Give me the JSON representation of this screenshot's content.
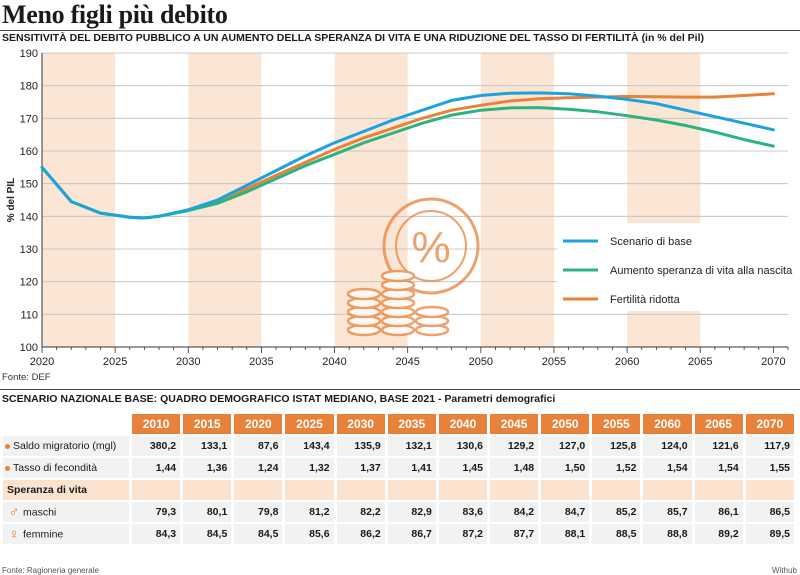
{
  "title": "Meno figli più debito",
  "subtitle": "SENSITIVITÀ DEL DEBITO PUBBLICO A UN AUMENTO DELLA SPERANZA DI VITA E UNA RIDUZIONE DEL TASSO DI FERTILITÀ",
  "subtitle_unit": "(in % del Pil)",
  "source": "Fonte: DEF",
  "chart_data": {
    "type": "line",
    "xlim": [
      2020,
      2071
    ],
    "ylim": [
      100,
      190
    ],
    "xticks": [
      2020,
      2025,
      2030,
      2035,
      2040,
      2045,
      2050,
      2055,
      2060,
      2065,
      2070
    ],
    "yticks": [
      100,
      110,
      120,
      130,
      140,
      150,
      160,
      170,
      180,
      190
    ],
    "xlabel": "",
    "ylabel": "% del PIL",
    "grid": true,
    "shaded_bands": [
      [
        2020,
        2025
      ],
      [
        2030,
        2035
      ],
      [
        2040,
        2045
      ],
      [
        2050,
        2055
      ],
      [
        2060,
        2065
      ]
    ],
    "legend_position": "right",
    "series": [
      {
        "name": "Scenario di base",
        "color": "#1ba3dc",
        "x": [
          2020,
          2022,
          2024,
          2026,
          2027,
          2028,
          2030,
          2032,
          2034,
          2036,
          2038,
          2040,
          2042,
          2044,
          2046,
          2048,
          2050,
          2052,
          2054,
          2056,
          2058,
          2060,
          2062,
          2064,
          2066,
          2068,
          2070
        ],
        "y": [
          155,
          144.5,
          141,
          139.7,
          139.5,
          140,
          142,
          145,
          149.5,
          154,
          158.5,
          162.5,
          166,
          169.5,
          172.5,
          175.5,
          177,
          177.7,
          177.8,
          177.5,
          176.8,
          175.8,
          174.5,
          172.5,
          170.5,
          168.5,
          166.5
        ]
      },
      {
        "name": "Aumento speranza di vita alla nascita",
        "color": "#2db37e",
        "x": [
          2020,
          2022,
          2024,
          2026,
          2027,
          2028,
          2030,
          2032,
          2034,
          2036,
          2038,
          2040,
          2042,
          2044,
          2046,
          2048,
          2050,
          2052,
          2054,
          2056,
          2058,
          2060,
          2062,
          2064,
          2066,
          2068,
          2070
        ],
        "y": [
          155,
          144.5,
          141,
          139.7,
          139.5,
          140,
          141.8,
          144,
          147.5,
          151.5,
          155.5,
          159,
          162.5,
          165.5,
          168.5,
          171,
          172.5,
          173.2,
          173.3,
          172.8,
          172,
          170.8,
          169.5,
          167.8,
          165.8,
          163.5,
          161.5
        ]
      },
      {
        "name": "Fertilità ridotta",
        "color": "#e8823b",
        "x": [
          2020,
          2022,
          2024,
          2026,
          2027,
          2028,
          2030,
          2032,
          2034,
          2036,
          2038,
          2040,
          2042,
          2044,
          2046,
          2048,
          2050,
          2052,
          2054,
          2056,
          2058,
          2060,
          2062,
          2064,
          2066,
          2068,
          2070
        ],
        "y": [
          155,
          144.5,
          141,
          139.7,
          139.5,
          140,
          142,
          144.5,
          148.5,
          152.5,
          156.5,
          160.5,
          164,
          167,
          170,
          172.5,
          174,
          175.3,
          176,
          176.3,
          176.5,
          176.7,
          176.6,
          176.5,
          176.5,
          177,
          177.5
        ]
      }
    ]
  },
  "table": {
    "title": "SCENARIO NAZIONALE BASE: QUADRO DEMOGRAFICO ISTAT MEDIANO, BASE 2021 - Parametri demografici",
    "years": [
      "2010",
      "2015",
      "2020",
      "2025",
      "2030",
      "2035",
      "2040",
      "2045",
      "2050",
      "2055",
      "2060",
      "2065",
      "2070"
    ],
    "rows": [
      {
        "label": "Saldo migratorio (mgl)",
        "values": [
          "380,2",
          "133,1",
          "87,6",
          "143,4",
          "135,9",
          "132,1",
          "130,6",
          "129,2",
          "127,0",
          "125,8",
          "124,0",
          "121,6",
          "117,9"
        ]
      },
      {
        "label": "Tasso di fecondità",
        "values": [
          "1,44",
          "1,36",
          "1,24",
          "1,32",
          "1,37",
          "1,41",
          "1,45",
          "1,48",
          "1,50",
          "1,52",
          "1,54",
          "1,54",
          "1,55"
        ]
      }
    ],
    "section_label": "Speranza di vita",
    "gender_rows": [
      {
        "label": "maschi",
        "icon": "male-icon",
        "values": [
          "79,3",
          "80,1",
          "79,8",
          "81,2",
          "82,2",
          "82,9",
          "83,6",
          "84,2",
          "84,7",
          "85,2",
          "85,7",
          "86,1",
          "86,5"
        ]
      },
      {
        "label": "femmine",
        "icon": "female-icon",
        "values": [
          "84,3",
          "84,5",
          "84,5",
          "85,6",
          "86,2",
          "86,7",
          "87,2",
          "87,7",
          "88,1",
          "88,5",
          "88,8",
          "89,2",
          "89,5"
        ]
      }
    ]
  },
  "footer_left": "Fonte: Ragioneria generale",
  "footer_right": "Withub",
  "colors": {
    "accent": "#e8823b",
    "band": "#fbe6d6",
    "row_bg": "#f2f2f2",
    "section_bg": "#fbe3d0"
  }
}
